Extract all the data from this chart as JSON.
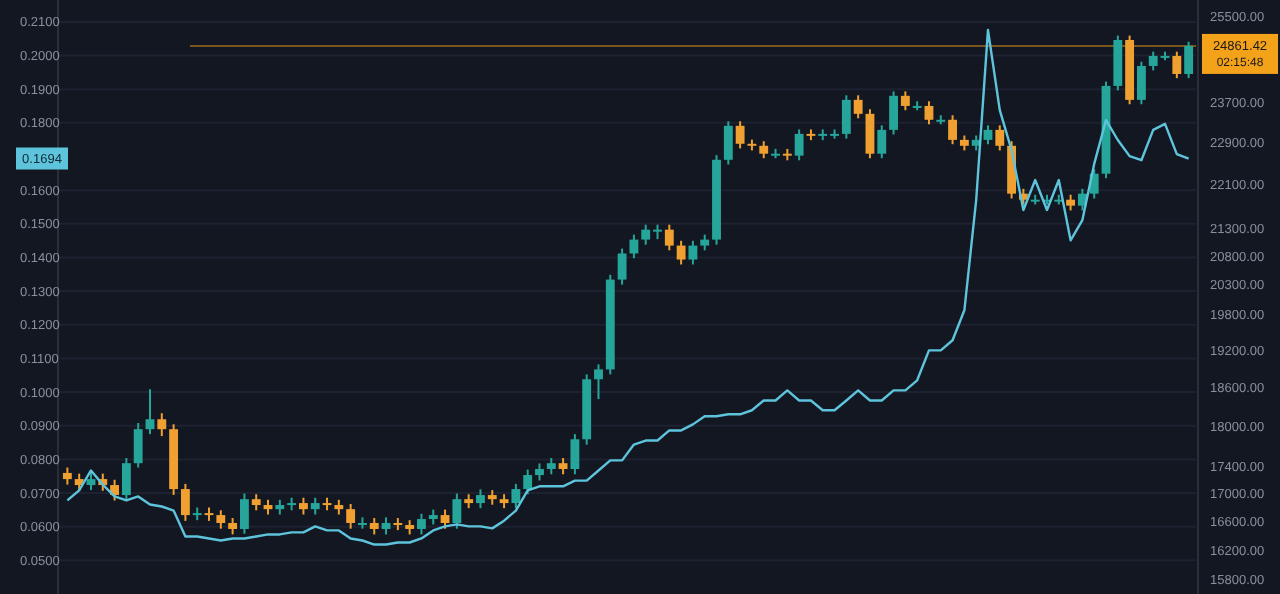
{
  "chart_data": {
    "type": "candlestick",
    "log": "y2",
    "grid": "y",
    "categories": [
      null,
      null,
      null,
      null,
      null,
      null,
      null,
      null,
      null,
      null,
      null,
      null,
      null,
      null,
      null,
      null,
      null,
      null,
      null,
      null,
      null,
      null,
      null,
      null,
      null,
      null,
      null,
      null,
      null,
      null,
      null,
      null,
      null,
      null,
      null,
      null,
      null,
      null,
      null,
      null,
      null,
      null,
      null,
      null,
      null,
      null,
      null,
      null,
      null,
      null,
      null,
      null,
      null,
      null,
      null,
      null,
      null,
      null,
      null,
      null,
      null,
      null,
      null,
      null,
      null,
      null,
      null,
      null,
      null,
      null,
      null,
      null,
      null,
      null,
      null,
      null,
      null,
      null,
      null,
      null,
      null,
      null,
      null,
      null,
      null,
      null,
      null,
      null,
      null,
      null,
      null,
      null,
      null,
      null,
      null,
      null
    ],
    "ylim": [
      0.04,
      0.2165
    ],
    "yticks": [
      {
        "value": 0.05,
        "label": "0.0500"
      },
      {
        "value": 0.06,
        "label": "0.0600"
      },
      {
        "value": 0.07,
        "label": "0.0700"
      },
      {
        "value": 0.08,
        "label": "0.0800"
      },
      {
        "value": 0.09,
        "label": "0.0900"
      },
      {
        "value": 0.1,
        "label": "0.1000"
      },
      {
        "value": 0.11,
        "label": "0.1100"
      },
      {
        "value": 0.12,
        "label": "0.1200"
      },
      {
        "value": 0.13,
        "label": "0.1300"
      },
      {
        "value": 0.14,
        "label": "0.1400"
      },
      {
        "value": 0.15,
        "label": "0.1500"
      },
      {
        "value": 0.16,
        "label": "0.1600"
      },
      {
        "value": 0.18,
        "label": "0.1800"
      },
      {
        "value": 0.19,
        "label": "0.1900"
      },
      {
        "value": 0.2,
        "label": "0.2000"
      },
      {
        "value": 0.21,
        "label": "0.2100"
      }
    ],
    "y2lim": [
      15610,
      25850
    ],
    "y2ticks": [
      {
        "value": 15800,
        "label": "15800.00"
      },
      {
        "value": 16200,
        "label": "16200.00"
      },
      {
        "value": 16600,
        "label": "16600.00"
      },
      {
        "value": 17000,
        "label": "17000.00"
      },
      {
        "value": 17400,
        "label": "17400.00"
      },
      {
        "value": 18000,
        "label": "18000.00"
      },
      {
        "value": 18600,
        "label": "18600.00"
      },
      {
        "value": 19200,
        "label": "19200.00"
      },
      {
        "value": 19800,
        "label": "19800.00"
      },
      {
        "value": 20300,
        "label": "20300.00"
      },
      {
        "value": 20800,
        "label": "20800.00"
      },
      {
        "value": 21300,
        "label": "21300.00"
      },
      {
        "value": 22100,
        "label": "22100.00"
      },
      {
        "value": 22900,
        "label": "22900.00"
      },
      {
        "value": 23700,
        "label": "23700.00"
      },
      {
        "value": 25500,
        "label": "25500.00"
      }
    ],
    "ref_lines": [
      {
        "axis": "y2",
        "value": 24861.42,
        "label": "24861.42",
        "color": "#f5a21b"
      }
    ],
    "annotations": [
      {
        "text": "0.1694",
        "y": 0.1694
      },
      "02:15:48"
    ],
    "series": [
      {
        "axis": "y2",
        "ohlc": [
          [
            17300,
            17380,
            17130,
            17210
          ],
          [
            17210,
            17290,
            17040,
            17123
          ],
          [
            17123,
            17300,
            17050,
            17210
          ],
          [
            17210,
            17290,
            17040,
            17123
          ],
          [
            17123,
            17200,
            16900,
            16978
          ],
          [
            16978,
            17520,
            16900,
            17444
          ],
          [
            17444,
            18050,
            17380,
            17955
          ],
          [
            17955,
            18575,
            17880,
            18107
          ],
          [
            18107,
            18200,
            17850,
            17955
          ],
          [
            17955,
            18030,
            16980,
            17065
          ],
          [
            17065,
            17140,
            16610,
            16692
          ],
          [
            16692,
            16800,
            16620,
            16720
          ],
          [
            16720,
            16800,
            16610,
            16692
          ],
          [
            16692,
            16760,
            16500,
            16580
          ],
          [
            16580,
            16650,
            16420,
            16496
          ],
          [
            16496,
            17000,
            16430,
            16919
          ],
          [
            16919,
            16990,
            16760,
            16835
          ],
          [
            16835,
            16910,
            16700,
            16776
          ],
          [
            16776,
            16910,
            16700,
            16835
          ],
          [
            16835,
            16940,
            16760,
            16863
          ],
          [
            16863,
            16940,
            16700,
            16776
          ],
          [
            16776,
            16940,
            16700,
            16863
          ],
          [
            16863,
            16940,
            16760,
            16835
          ],
          [
            16835,
            16910,
            16700,
            16776
          ],
          [
            16776,
            16850,
            16500,
            16580
          ],
          [
            16580,
            16660,
            16500,
            16580
          ],
          [
            16580,
            16650,
            16420,
            16496
          ],
          [
            16496,
            16660,
            16420,
            16580
          ],
          [
            16580,
            16650,
            16480,
            16552
          ],
          [
            16552,
            16620,
            16420,
            16496
          ],
          [
            16496,
            16710,
            16420,
            16636
          ],
          [
            16636,
            16770,
            16560,
            16692
          ],
          [
            16692,
            16770,
            16500,
            16580
          ],
          [
            16580,
            17000,
            16500,
            16919
          ],
          [
            16919,
            16990,
            16790,
            16863
          ],
          [
            16863,
            17060,
            16790,
            16978
          ],
          [
            16978,
            17050,
            16840,
            16919
          ],
          [
            16919,
            16990,
            16790,
            16863
          ],
          [
            16863,
            17140,
            16790,
            17065
          ],
          [
            17065,
            17350,
            16990,
            17269
          ],
          [
            17269,
            17440,
            17190,
            17358
          ],
          [
            17358,
            17520,
            17280,
            17444
          ],
          [
            17444,
            17520,
            17280,
            17358
          ],
          [
            17358,
            17880,
            17280,
            17802
          ],
          [
            17802,
            18810,
            17720,
            18732
          ],
          [
            18732,
            18970,
            18420,
            18890
          ],
          [
            18890,
            20470,
            18810,
            20387
          ],
          [
            20387,
            20930,
            20300,
            20844
          ],
          [
            20844,
            21180,
            20760,
            21091
          ],
          [
            21091,
            21360,
            21000,
            21270
          ],
          [
            21270,
            21360,
            21100,
            21270
          ],
          [
            21270,
            21360,
            20900,
            20984
          ],
          [
            20984,
            21070,
            20650,
            20737
          ],
          [
            20737,
            21070,
            20650,
            20984
          ],
          [
            20984,
            21180,
            20900,
            21091
          ],
          [
            21091,
            22660,
            21000,
            22570
          ],
          [
            22570,
            23320,
            22480,
            23231
          ],
          [
            23231,
            23320,
            22790,
            22879
          ],
          [
            22879,
            22960,
            22750,
            22840
          ],
          [
            22840,
            22930,
            22600,
            22687
          ],
          [
            22687,
            22780,
            22600,
            22687
          ],
          [
            22687,
            22780,
            22560,
            22649
          ],
          [
            22649,
            23160,
            22560,
            23072
          ],
          [
            23072,
            23160,
            22950,
            23034
          ],
          [
            23034,
            23160,
            22950,
            23072
          ],
          [
            23072,
            23160,
            22980,
            23072
          ],
          [
            23072,
            23840,
            22980,
            23748
          ],
          [
            23748,
            23840,
            23380,
            23468
          ],
          [
            23468,
            23560,
            22600,
            22687
          ],
          [
            22687,
            23240,
            22600,
            23151
          ],
          [
            23151,
            23920,
            23060,
            23830
          ],
          [
            23830,
            23920,
            23540,
            23626
          ],
          [
            23626,
            23720,
            23540,
            23626
          ],
          [
            23626,
            23720,
            23260,
            23350
          ],
          [
            23350,
            23440,
            23260,
            23350
          ],
          [
            23350,
            23440,
            22870,
            22955
          ],
          [
            22955,
            23040,
            22750,
            22840
          ],
          [
            22840,
            23040,
            22750,
            22955
          ],
          [
            22955,
            23240,
            22870,
            23151
          ],
          [
            23151,
            23240,
            22750,
            22840
          ],
          [
            22840,
            22930,
            21840,
            21930
          ],
          [
            21930,
            22020,
            21730,
            21818
          ],
          [
            21818,
            21910,
            21730,
            21818
          ],
          [
            21818,
            21910,
            21730,
            21818
          ],
          [
            21818,
            21910,
            21730,
            21818
          ],
          [
            21818,
            21910,
            21620,
            21708
          ],
          [
            21708,
            22020,
            21620,
            21930
          ],
          [
            21930,
            22390,
            21840,
            22305
          ],
          [
            22305,
            24120,
            22220,
            24031
          ],
          [
            24031,
            25080,
            23940,
            24987
          ],
          [
            24987,
            25080,
            23660,
            23748
          ],
          [
            23748,
            24530,
            23660,
            24442
          ],
          [
            24442,
            24740,
            24350,
            24651
          ],
          [
            24651,
            24740,
            24560,
            24651
          ],
          [
            24651,
            24740,
            24190,
            24276
          ],
          [
            24276,
            24950,
            24190,
            24861.42
          ]
        ],
        "colors": [
          "#f0a030",
          "#f0a030",
          "#26a69a",
          "#f0a030",
          "#f0a030",
          "#26a69a",
          "#26a69a",
          "#26a69a",
          "#f0a030",
          "#f0a030",
          "#f0a030",
          "#26a69a",
          "#f0a030",
          "#f0a030",
          "#f0a030",
          "#26a69a",
          "#f0a030",
          "#f0a030",
          "#26a69a",
          "#26a69a",
          "#f0a030",
          "#26a69a",
          "#f0a030",
          "#f0a030",
          "#f0a030",
          "#26a69a",
          "#f0a030",
          "#26a69a",
          "#f0a030",
          "#f0a030",
          "#26a69a",
          "#26a69a",
          "#f0a030",
          "#26a69a",
          "#f0a030",
          "#26a69a",
          "#f0a030",
          "#f0a030",
          "#26a69a",
          "#26a69a",
          "#26a69a",
          "#26a69a",
          "#f0a030",
          "#26a69a",
          "#26a69a",
          "#26a69a",
          "#26a69a",
          "#26a69a",
          "#26a69a",
          "#26a69a",
          "#26a69a",
          "#f0a030",
          "#f0a030",
          "#26a69a",
          "#26a69a",
          "#26a69a",
          "#26a69a",
          "#f0a030",
          "#f0a030",
          "#f0a030",
          "#26a69a",
          "#f0a030",
          "#26a69a",
          "#f0a030",
          "#26a69a",
          "#26a69a",
          "#26a69a",
          "#f0a030",
          "#f0a030",
          "#26a69a",
          "#26a69a",
          "#f0a030",
          "#26a69a",
          "#f0a030",
          "#26a69a",
          "#f0a030",
          "#f0a030",
          "#26a69a",
          "#26a69a",
          "#f0a030",
          "#f0a030",
          "#f0a030",
          "#26a69a",
          "#26a69a",
          "#26a69a",
          "#f0a030",
          "#26a69a",
          "#26a69a",
          "#26a69a",
          "#26a69a",
          "#f0a030",
          "#26a69a",
          "#26a69a",
          "#26a69a",
          "#f0a030",
          "#26a69a"
        ]
      },
      {
        "type": "line",
        "axis": "y",
        "color": "#5ec4dc",
        "values": [
          0.0678,
          0.0708,
          0.0767,
          0.0725,
          0.069,
          0.0678,
          0.069,
          0.0666,
          0.066,
          0.0648,
          0.0571,
          0.0571,
          0.0565,
          0.0559,
          0.0565,
          0.0565,
          0.0571,
          0.0577,
          0.0577,
          0.0583,
          0.0583,
          0.0601,
          0.0589,
          0.0589,
          0.0565,
          0.0559,
          0.0547,
          0.0547,
          0.0553,
          0.0553,
          0.0565,
          0.0589,
          0.0601,
          0.0607,
          0.0601,
          0.0601,
          0.0595,
          0.0618,
          0.0648,
          0.0708,
          0.072,
          0.072,
          0.072,
          0.0737,
          0.0737,
          0.0767,
          0.0797,
          0.0797,
          0.0844,
          0.0856,
          0.0856,
          0.0886,
          0.0886,
          0.0904,
          0.0928,
          0.0928,
          0.0934,
          0.0934,
          0.0946,
          0.0975,
          0.0975,
          0.1005,
          0.0975,
          0.0975,
          0.0946,
          0.0946,
          0.0975,
          0.1005,
          0.0975,
          0.0975,
          0.1005,
          0.1005,
          0.1035,
          0.1124,
          0.1124,
          0.1154,
          0.1243,
          0.157,
          0.2076,
          0.1838,
          0.1719,
          0.1541,
          0.163,
          0.1541,
          0.163,
          0.1451,
          0.1511,
          0.1678,
          0.1808,
          0.1749,
          0.1701,
          0.1689,
          0.1779,
          0.1797,
          0.1707,
          0.1694
        ]
      }
    ]
  }
}
